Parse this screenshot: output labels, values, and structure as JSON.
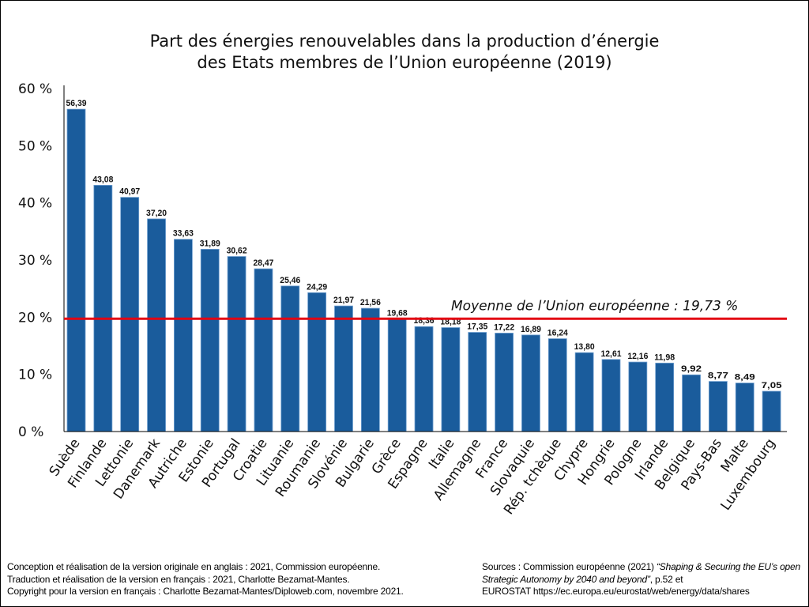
{
  "title_line1": "Part des énergies renouvelables dans la production d’énergie",
  "title_line2": "des Etats membres de l’Union européenne (2019)",
  "chart_data": {
    "type": "bar",
    "title": "Part des énergies renouvelables dans la production d’énergie des Etats membres de l’Union européenne (2019)",
    "categories": [
      "Suède",
      "Finlande",
      "Lettonie",
      "Danemark",
      "Autriche",
      "Estonie",
      "Portugal",
      "Croatie",
      "Lituanie",
      "Roumanie",
      "Slovénie",
      "Bulgarie",
      "Grèce",
      "Espagne",
      "Italie",
      "Allemagne",
      "France",
      "Slovaquie",
      "Rép. tchèque",
      "Chypre",
      "Hongrie",
      "Pologne",
      "Irlande",
      "Belgique",
      "Pays-Bas",
      "Malte",
      "Luxembourg"
    ],
    "values": [
      56.39,
      43.08,
      40.97,
      37.2,
      33.63,
      31.89,
      30.62,
      28.47,
      25.46,
      24.29,
      21.97,
      21.56,
      19.68,
      18.36,
      18.18,
      17.35,
      17.22,
      16.89,
      16.24,
      13.8,
      12.61,
      12.16,
      11.98,
      9.92,
      8.77,
      8.49,
      7.05
    ],
    "data_labels": [
      "56,39",
      "43,08",
      "40,97",
      "37,20",
      "33,63",
      "31,89",
      "30,62",
      "28,47",
      "25,46",
      "24,29",
      "21,97",
      "21,56",
      "19,68",
      "18,36",
      "18,18",
      "17,35",
      "17,22",
      "16,89",
      "16,24",
      "13,80",
      "12,61",
      "12,16",
      "11,98",
      "9,92",
      "8,77",
      "8,49",
      "7,05"
    ],
    "y_ticks": [
      0,
      10,
      20,
      30,
      40,
      50,
      60
    ],
    "y_tick_labels": [
      "0 %",
      "10 %",
      "20 %",
      "30 %",
      "40 %",
      "50 %",
      "60 %"
    ],
    "ylim": [
      0,
      60
    ],
    "grid": false,
    "reference_line": {
      "value": 19.73,
      "label": "Moyenne de l’Union européenne : 19,73 %",
      "color": "#e30613"
    },
    "bar_color": "#1a5c9c"
  },
  "footer": {
    "left": [
      "Conception et réalisation de la version originale en anglais : 2021, Commission européenne.",
      "Traduction et réalisation de la version en français : 2021, Charlotte Bezamat-Mantes.",
      "Copyright pour la version en français : Charlotte Bezamat-Mantes/Diploweb.com, novembre 2021."
    ],
    "right_prefix": "Sources : Commission européenne (2021) ",
    "right_italic": "“Shaping & Securing the EU’s open Strategic Autonomy by 2040 and beyond”",
    "right_suffix": ", p.52 et",
    "right_line3": "EUROSTAT https://ec.europa.eu/eurostat/web/energy/data/shares"
  }
}
